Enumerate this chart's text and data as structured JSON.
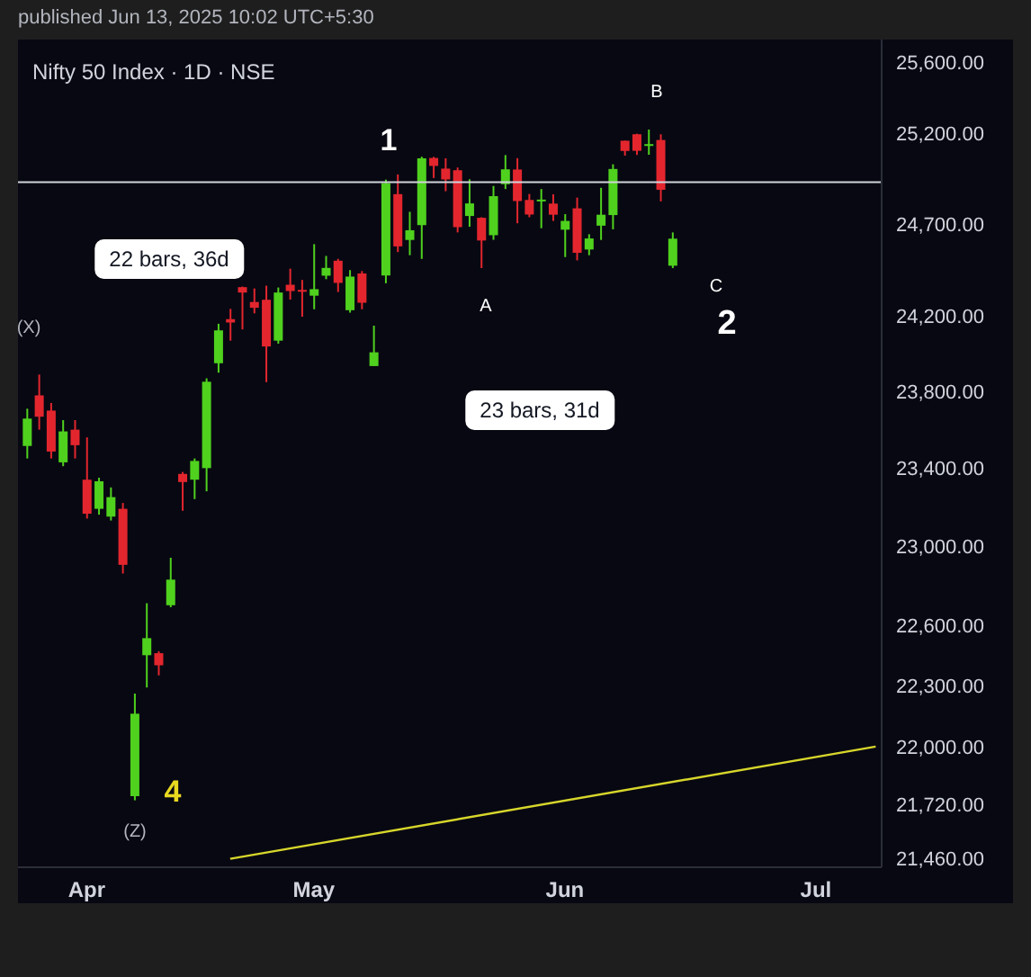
{
  "chart_data": {
    "type": "candlestick",
    "title": "Nifty 50 Index · 1D · NSE",
    "categories": [
      null,
      null,
      null,
      null,
      null,
      "Apr",
      null,
      null,
      null,
      null,
      null,
      null,
      null,
      null,
      null,
      null,
      null,
      null,
      null,
      null,
      null,
      null,
      null,
      null,
      "May",
      null,
      null,
      null,
      null,
      null,
      null,
      null,
      null,
      null,
      null,
      null,
      null,
      null,
      null,
      null,
      null,
      null,
      null,
      null,
      null,
      "Jun",
      null,
      null,
      null,
      null,
      null,
      null,
      null,
      null,
      null,
      null,
      null,
      null,
      null,
      null,
      null,
      null,
      null,
      null,
      null,
      null,
      "Jul",
      null,
      null,
      null,
      null,
      null
    ],
    "ohlc": [
      [
        23515,
        23710,
        23450,
        23658
      ],
      [
        23780,
        23890,
        23600,
        23668
      ],
      [
        23700,
        23740,
        23450,
        23486
      ],
      [
        23430,
        23650,
        23410,
        23591
      ],
      [
        23600,
        23650,
        23450,
        23519
      ],
      [
        23340,
        23560,
        23140,
        23165
      ],
      [
        23190,
        23350,
        23160,
        23332
      ],
      [
        23150,
        23300,
        23130,
        23250
      ],
      [
        23190,
        23220,
        22860,
        22904
      ],
      [
        21760,
        22260,
        21740,
        22161
      ],
      [
        22450,
        22710,
        22290,
        22535
      ],
      [
        22460,
        22470,
        22350,
        22400
      ],
      [
        22700,
        22940,
        22690,
        22829
      ],
      [
        23370,
        23380,
        23180,
        23328
      ],
      [
        23340,
        23450,
        23240,
        23437
      ],
      [
        23400,
        23870,
        23280,
        23852
      ],
      [
        23950,
        24160,
        23900,
        24125
      ],
      [
        24185,
        24240,
        24070,
        24167
      ],
      [
        24357,
        24360,
        24130,
        24328
      ],
      [
        24277,
        24350,
        24216,
        24246
      ],
      [
        24289,
        24365,
        23850,
        24039
      ],
      [
        24070,
        24355,
        24054,
        24328
      ],
      [
        24370,
        24457,
        24290,
        24336
      ],
      [
        24342,
        24396,
        24198,
        24334
      ],
      [
        24311,
        24590,
        24238,
        24346
      ],
      [
        24419,
        24526,
        24400,
        24461
      ],
      [
        24500,
        24510,
        24331,
        24380
      ],
      [
        24233,
        24449,
        24220,
        24414
      ],
      [
        24431,
        24444,
        24238,
        24273
      ],
      [
        23935,
        24150,
        23935,
        24008
      ],
      [
        24420,
        24944,
        24378,
        24925
      ],
      [
        24864,
        24973,
        24547,
        24578
      ],
      [
        24613,
        24767,
        24530,
        24666
      ],
      [
        24694,
        25071,
        24510,
        25062
      ],
      [
        25064,
        25070,
        24953,
        25020
      ],
      [
        25005,
        25062,
        24880,
        24945
      ],
      [
        24996,
        25011,
        24654,
        24683
      ],
      [
        24744,
        24946,
        24685,
        24813
      ],
      [
        24734,
        24737,
        24460,
        24610
      ],
      [
        24639,
        24909,
        24614,
        24853
      ],
      [
        24919,
        25080,
        24892,
        25001
      ],
      [
        25000,
        25063,
        24704,
        24826
      ],
      [
        24832,
        24865,
        24737,
        24752
      ],
      [
        24825,
        24892,
        24677,
        24834
      ],
      [
        24812,
        24863,
        24717,
        24751
      ],
      [
        24669,
        24754,
        24520,
        24717
      ],
      [
        24786,
        24845,
        24502,
        24543
      ],
      [
        24561,
        24644,
        24530,
        24621
      ],
      [
        24691,
        24899,
        24613,
        24751
      ],
      [
        24749,
        25029,
        24671,
        25003
      ],
      [
        25160,
        25160,
        25077,
        25103
      ],
      [
        25196,
        25199,
        25081,
        25104
      ],
      [
        25134,
        25222,
        25082,
        25141
      ],
      [
        25164,
        25196,
        24824,
        24888
      ],
      [
        24473,
        24654,
        24460,
        24620
      ],
      null,
      null,
      null,
      null,
      null,
      null,
      null,
      null,
      null,
      null,
      null,
      null,
      null,
      null,
      null,
      null,
      null
    ],
    "colors": [
      "#4fd11e",
      "#e3262e",
      "#e3262e",
      "#4fd11e",
      "#e3262e",
      "#e3262e",
      "#4fd11e",
      "#4fd11e",
      "#e3262e",
      "#4fd11e",
      "#4fd11e",
      "#e3262e",
      "#4fd11e",
      "#e3262e",
      "#4fd11e",
      "#4fd11e",
      "#4fd11e",
      "#e3262e",
      "#e3262e",
      "#e3262e",
      "#e3262e",
      "#4fd11e",
      "#e3262e",
      "#e3262e",
      "#4fd11e",
      "#4fd11e",
      "#e3262e",
      "#4fd11e",
      "#e3262e",
      "#4fd11e",
      "#4fd11e",
      "#e3262e",
      "#4fd11e",
      "#4fd11e",
      "#e3262e",
      "#e3262e",
      "#e3262e",
      "#4fd11e",
      "#e3262e",
      "#4fd11e",
      "#4fd11e",
      "#e3262e",
      "#e3262e",
      "#4fd11e",
      "#e3262e",
      "#4fd11e",
      "#e3262e",
      "#4fd11e",
      "#4fd11e",
      "#4fd11e",
      "#e3262e",
      "#e3262e",
      "#4fd11e",
      "#e3262e",
      "#4fd11e",
      null,
      null,
      null,
      null,
      null,
      null,
      null,
      null,
      null,
      null,
      null,
      null,
      null,
      null,
      null,
      null,
      null
    ],
    "series": [
      {
        "type": "line",
        "color": "#d7d62b",
        "values": [
          null,
          null,
          null,
          null,
          null,
          null,
          null,
          null,
          null,
          null,
          null,
          null,
          null,
          null,
          null,
          null,
          null,
          21460,
          null,
          null,
          null,
          null,
          null,
          null,
          null,
          null,
          null,
          null,
          null,
          null,
          null,
          null,
          null,
          null,
          null,
          null,
          null,
          null,
          null,
          null,
          null,
          null,
          null,
          null,
          null,
          null,
          null,
          null,
          null,
          null,
          null,
          null,
          null,
          null,
          null,
          null,
          null,
          null,
          null,
          null,
          null,
          null,
          null,
          null,
          null,
          null,
          null,
          null,
          null,
          null,
          null,
          22000
        ]
      }
    ],
    "log": true,
    "ylim": [
      21420,
      25730
    ],
    "yticks": [
      {
        "value": 21460,
        "label": "21,460.00"
      },
      {
        "value": 21720,
        "label": "21,720.00"
      },
      {
        "value": 22000,
        "label": "22,000.00"
      },
      {
        "value": 22300,
        "label": "22,300.00"
      },
      {
        "value": 22600,
        "label": "22,600.00"
      },
      {
        "value": 23000,
        "label": "23,000.00"
      },
      {
        "value": 23400,
        "label": "23,400.00"
      },
      {
        "value": 23800,
        "label": "23,800.00"
      },
      {
        "value": 24200,
        "label": "24,200.00"
      },
      {
        "value": 24700,
        "label": "24,700.00"
      },
      {
        "value": 25200,
        "label": "25,200.00"
      },
      {
        "value": 25600,
        "label": "25,600.00"
      }
    ],
    "ref_lines": [
      {
        "axis": "y",
        "value": 24930,
        "color": "#d1d4dc"
      }
    ],
    "annotations": [
      "published Jun 13, 2025 10:02 UTC+5:30",
      "1",
      "B",
      "A",
      "C",
      "2",
      "4",
      "(X)",
      "(Z)",
      "22 bars, 36d",
      "23 bars, 31d"
    ]
  }
}
